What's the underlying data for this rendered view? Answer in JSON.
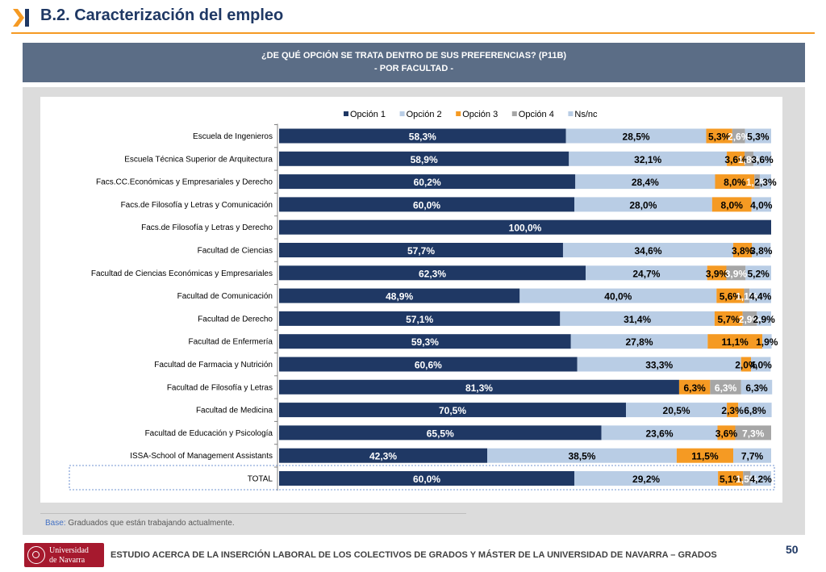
{
  "header": {
    "title": "B.2. Caracterización del empleo"
  },
  "question": {
    "line1": "¿DE QUÉ OPCIÓN SE TRATA DENTRO DE SUS PREFERENCIAS? (P11B)",
    "line2": "- POR FACULTAD -"
  },
  "footnote": {
    "label": "Base:",
    "text": " Graduados que están trabajando actualmente."
  },
  "footer": {
    "logo_line1": "Universidad",
    "logo_line2": "de Navarra",
    "text": "ESTUDIO ACERCA DE LA INSERCIÓN LABORAL DE LOS COLECTIVOS DE GRADOS Y MÁSTER DE LA UNIVERSIDAD DE NAVARRA – GRADOS",
    "page_number": "50"
  },
  "colors": {
    "accent": "#f59a23",
    "title": "#1f3864"
  },
  "chart_data": {
    "type": "bar",
    "orientation": "horizontal",
    "stacked": true,
    "title": "",
    "xlim": [
      0,
      100
    ],
    "legend_position": "top",
    "categories": [
      "Escuela de Ingenieros",
      "Escuela Técnica Superior de Arquitectura",
      "Facs.CC.Económicas y Empresariales y Derecho",
      "Facs.de Filosofía y Letras y Comunicación",
      "Facs.de Filosofía y Letras y Derecho",
      "Facultad de Ciencias",
      "Facultad de Ciencias Económicas y Empresariales",
      "Facultad de Comunicación",
      "Facultad de Derecho",
      "Facultad de Enfermería",
      "Facultad de Farmacia y Nutrición",
      "Facultad de Filosofía y Letras",
      "Facultad de Medicina",
      "Facultad de Educación y Psicología",
      "ISSA-School of Management Assistants",
      "TOTAL"
    ],
    "series": [
      {
        "name": "Opción 1",
        "color": "#1f3864",
        "label_color": "#ffffff",
        "values": [
          58.3,
          58.9,
          60.2,
          60.0,
          100.0,
          57.7,
          62.3,
          48.9,
          57.1,
          59.3,
          60.6,
          81.3,
          70.5,
          65.5,
          42.3,
          60.0
        ],
        "labels": [
          "58,3%",
          "58,9%",
          "60,2%",
          "60,0%",
          "100,0%",
          "57,7%",
          "62,3%",
          "48,9%",
          "57,1%",
          "59,3%",
          "60,6%",
          "81,3%",
          "70,5%",
          "65,5%",
          "42,3%",
          "60,0%"
        ]
      },
      {
        "name": "Opción 2",
        "color": "#b9cde5",
        "label_color": "#000000",
        "values": [
          28.5,
          32.1,
          28.4,
          28.0,
          0,
          34.6,
          24.7,
          40.0,
          31.4,
          27.8,
          33.3,
          0,
          20.5,
          23.6,
          38.5,
          29.2
        ],
        "labels": [
          "28,5%",
          "32,1%",
          "28,4%",
          "28,0%",
          "",
          "34,6%",
          "24,7%",
          "40,0%",
          "31,4%",
          "27,8%",
          "33,3%",
          "",
          "20,5%",
          "23,6%",
          "38,5%",
          "29,2%"
        ]
      },
      {
        "name": "Opción 3",
        "color": "#f59a23",
        "label_color": "#000000",
        "values": [
          5.3,
          3.6,
          8.0,
          8.0,
          0,
          3.8,
          3.9,
          5.6,
          5.7,
          11.1,
          2.0,
          6.3,
          2.3,
          3.6,
          11.5,
          5.1
        ],
        "labels": [
          "5,3%",
          "3,6%",
          "8,0%",
          "8,0%",
          "",
          "3,8%",
          "3,9%",
          "5,6%",
          "5,7%",
          "11,1%",
          "2,0%",
          "6,3%",
          "2,3%",
          "3,6%",
          "11,5%",
          "5,1%"
        ]
      },
      {
        "name": "Opción 4",
        "color": "#a6a6a6",
        "label_color": "#ffffff",
        "values": [
          2.6,
          1.8,
          1.1,
          0,
          0,
          0,
          3.9,
          1.1,
          2.9,
          0,
          0,
          6.3,
          0,
          7.3,
          0,
          1.5
        ],
        "labels": [
          "2,6%",
          "1,8%",
          "1,1%",
          "",
          "",
          "",
          "3,9%",
          "1,1%",
          "2,9%",
          "",
          "",
          "6,3%",
          "",
          "7,3%",
          "",
          "1,5%"
        ]
      },
      {
        "name": "Ns/nc",
        "color": "#b9cde5",
        "label_color": "#000000",
        "values": [
          5.3,
          3.6,
          2.3,
          4.0,
          0,
          3.8,
          5.2,
          4.4,
          2.9,
          1.9,
          4.0,
          6.3,
          6.8,
          0,
          7.7,
          4.2
        ],
        "labels": [
          "5,3%",
          "3,6%",
          "2,3%",
          "4,0%",
          "",
          "3,8%",
          "5,2%",
          "4,4%",
          "2,9%",
          "1,9%",
          "4,0%",
          "6,3%",
          "6,8%",
          "",
          "7,7%",
          "4,2%"
        ]
      }
    ]
  }
}
